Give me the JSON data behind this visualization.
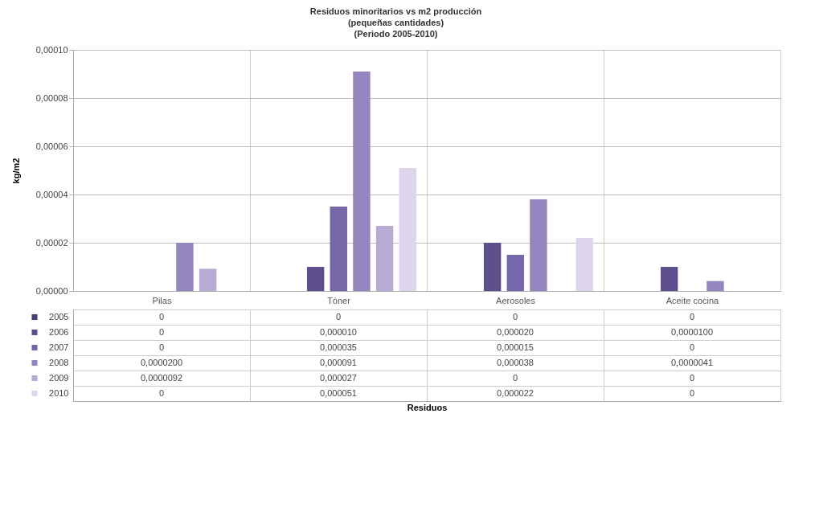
{
  "chart_data": {
    "type": "bar",
    "title": "Residuos minoritarios vs m2 producción\n(pequeñas cantidades)\n(Periodo 2005-2010)",
    "annotations": [
      "Residuos"
    ],
    "ylabel": "kg/m2",
    "categories": [
      "Pilas",
      "Tóner",
      "Aerosoles",
      "Aceite cocina"
    ],
    "series": [
      {
        "name": "2005",
        "color": "#4b3d70",
        "values": [
          0,
          0,
          0,
          0
        ],
        "value_labels": [
          "0",
          "0",
          "0",
          "0"
        ]
      },
      {
        "name": "2006",
        "color": "#5e4e8c",
        "values": [
          0,
          1e-05,
          2e-05,
          1e-05
        ],
        "value_labels": [
          "0",
          "0,000010",
          "0,000020",
          "0,0000100"
        ]
      },
      {
        "name": "2007",
        "color": "#7667a8",
        "values": [
          0,
          3.5e-05,
          1.5e-05,
          0
        ],
        "value_labels": [
          "0",
          "0,000035",
          "0,000015",
          "0"
        ]
      },
      {
        "name": "2008",
        "color": "#9585be",
        "values": [
          2e-05,
          9.1e-05,
          3.8e-05,
          4.1e-06
        ],
        "value_labels": [
          "0,0000200",
          "0,000091",
          "0,000038",
          "0,0000041"
        ]
      },
      {
        "name": "2009",
        "color": "#b7abd4",
        "values": [
          9.2e-06,
          2.7e-05,
          0,
          0
        ],
        "value_labels": [
          "0,0000092",
          "0,000027",
          "0",
          "0"
        ]
      },
      {
        "name": "2010",
        "color": "#ddd5ec",
        "values": [
          0,
          5.1e-05,
          2.2e-05,
          0
        ],
        "value_labels": [
          "0",
          "0,000051",
          "0,000022",
          "0"
        ]
      }
    ],
    "ylim": [
      0,
      0.0001
    ],
    "yticks": [
      {
        "value": 0,
        "label": "0,00000"
      },
      {
        "value": 2e-05,
        "label": "0,00002"
      },
      {
        "value": 4e-05,
        "label": "0,00004"
      },
      {
        "value": 6e-05,
        "label": "0,00006"
      },
      {
        "value": 8e-05,
        "label": "0,00008"
      },
      {
        "value": 0.0001,
        "label": "0,00010"
      }
    ],
    "grid": "y",
    "legend": "bottom"
  }
}
